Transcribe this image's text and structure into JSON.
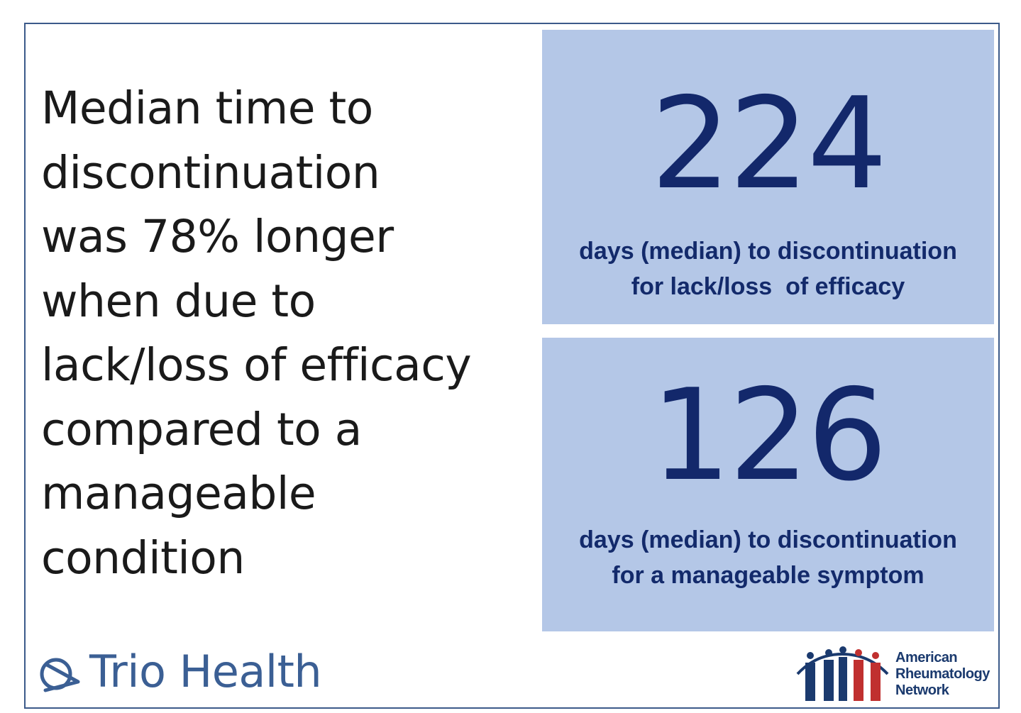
{
  "headline": {
    "lines": [
      "Median time to",
      "discontinuation",
      "was 78% longer",
      "when due to",
      "lack/loss of efficacy",
      "compared to a",
      "manageable",
      "condition"
    ]
  },
  "stats": [
    {
      "value": "224",
      "caption_lines": [
        "days (median) to discontinuation",
        "for lack/loss  of efficacy"
      ]
    },
    {
      "value": "126",
      "caption_lines": [
        "days (median) to discontinuation",
        "for a manageable symptom"
      ]
    }
  ],
  "logos": {
    "trio": {
      "text": "Trio Health",
      "icon": "trio-health-mark-icon",
      "color": "#3b5f94"
    },
    "arn": {
      "lines": [
        "American",
        "Rheumatology",
        "Network"
      ],
      "icon": "arn-figures-icon",
      "colors": {
        "blue": "#1b3a6e",
        "red": "#c0302f"
      }
    }
  },
  "colors": {
    "box_background": "#b4c7e7",
    "stat_text": "#13286b",
    "frame_border": "#3c5a8a",
    "headline_text": "#1a1a1a"
  }
}
